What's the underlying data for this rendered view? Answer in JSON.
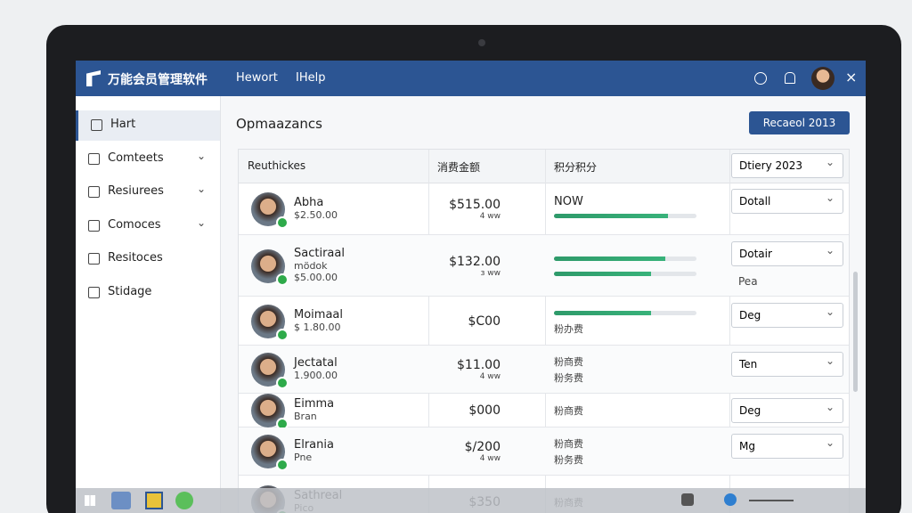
{
  "app": {
    "title": "万能会员管理软件",
    "nav": [
      "Hewort",
      "IHelp"
    ]
  },
  "sidebar": [
    "Hart",
    "Comteets",
    "Resiurees",
    "Comoces",
    "Resitoces",
    "Stidage"
  ],
  "content": {
    "title": "Opmaazancs",
    "button": "Recaeol 2013"
  },
  "table": {
    "headers": [
      "Reuthickes",
      "消费金额",
      "积分积分",
      "Dtiery 2023"
    ],
    "rows": [
      {
        "name": "Abha",
        "sub": [
          "$2.50.00"
        ],
        "amount": "$515.00",
        "amount_note": "4 ww",
        "points": {
          "label": "NOW",
          "progress": [
            80
          ]
        },
        "select": "Dotall"
      },
      {
        "name": "Sactiraal",
        "sub": [
          "mödok",
          "$5.00.00"
        ],
        "amount": "$132.00",
        "amount_note": "з ww",
        "points": {
          "progress": [
            78,
            68
          ]
        },
        "select": "Dotair",
        "extra": "Pea"
      },
      {
        "name": "Moimaal",
        "sub": [
          "$ 1.80.00"
        ],
        "amount": "$C00",
        "points": {
          "progress": [
            68
          ],
          "notes": [
            "粉办费"
          ]
        },
        "select": "Deg"
      },
      {
        "name": "Jectatal",
        "sub": [
          "1.900.00"
        ],
        "amount": "$11.00",
        "amount_note": "4 ww",
        "points": {
          "notes": [
            "粉商费",
            "粉务费"
          ]
        },
        "select": "Ten"
      },
      {
        "name": "Eimma",
        "sub": [
          "Bran"
        ],
        "amount": "$000",
        "points": {
          "notes": [
            "粉商费"
          ]
        },
        "select": "Deg"
      },
      {
        "name": "Elrania",
        "sub": [
          "Pne"
        ],
        "amount": "$/200",
        "amount_note": "4 ww",
        "points": {
          "notes": [
            "粉商费",
            "粉务费"
          ]
        },
        "select": "Mg"
      },
      {
        "name": "Sathreal",
        "sub": [
          "Pico"
        ],
        "amount": "$350",
        "points": {
          "notes": [
            "粉商费"
          ]
        }
      }
    ]
  }
}
